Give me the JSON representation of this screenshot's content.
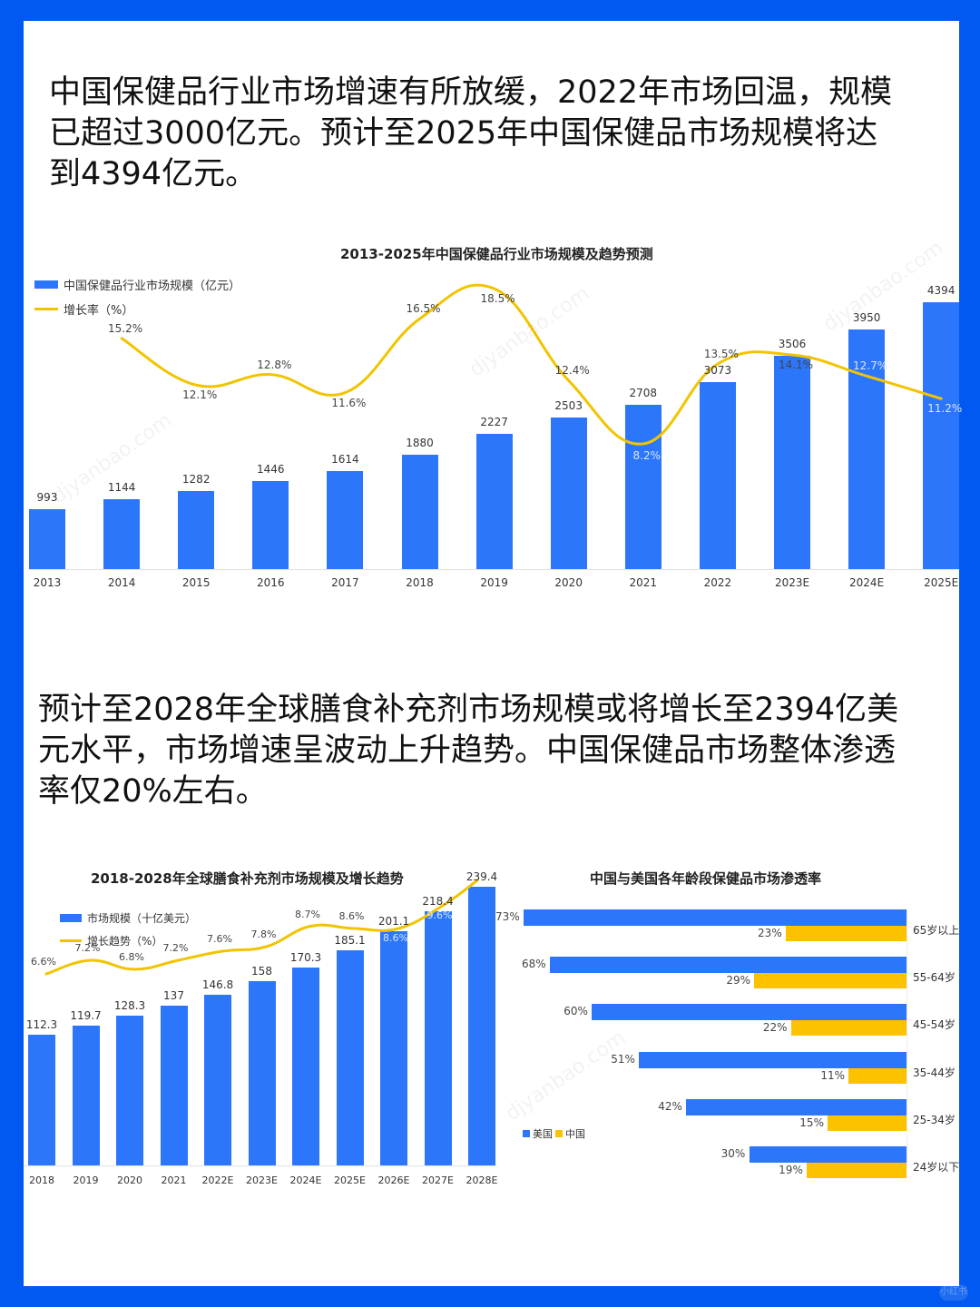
{
  "paragraphs": [
    "中国保健品行业市场增速有所放缓，2022年市场回温，规模已超过3000亿元。预计至2025年中国保健品市场规模将达到4394亿元。",
    "预计至2028年全球膳食补充剂市场规模或将增长至2394亿美元水平，市场增速呈波动上升趋势。中国保健品市场整体渗透率仅20%左右。"
  ],
  "paragraph_lines": [
    [
      "中国保健品行业市场增速有所放缓，2022年市场回温，规模",
      "已超过3000亿元。预计至2025年中国保健品市场规模将达",
      "到4394亿元。"
    ],
    [
      "预计至2028年全球膳食补充剂市场规模或将增长至2394亿美",
      "元水平，市场增速呈波动上升趋势。中国保健品市场整体渗透",
      "率仅20%左右。"
    ]
  ],
  "watermark": "djyanbao.com",
  "badge": "小红书",
  "colors": {
    "frame": "#0059f0",
    "bar": "#2c76fb",
    "line": "#f2c400",
    "china_bar": "#fcc200"
  },
  "chart_data": [
    {
      "type": "bar",
      "title": "2013-2025年中国保健品行业市场规模及趋势预测",
      "categories": [
        "2013",
        "2014",
        "2015",
        "2016",
        "2017",
        "2018",
        "2019",
        "2020",
        "2021",
        "2022",
        "2023E",
        "2024E",
        "2025E"
      ],
      "series": [
        {
          "name": "中国保健品行业市场规模（亿元）",
          "type": "bar",
          "values": [
            993,
            1144,
            1282,
            1446,
            1614,
            1880,
            2227,
            2503,
            2708,
            3073,
            3506,
            3950,
            4394
          ],
          "labels": [
            "993",
            "1144",
            "1282",
            "1446",
            "1614",
            "1880",
            "2227",
            "2503",
            "2708",
            "3073",
            "3506",
            "3950",
            "4394"
          ]
        },
        {
          "name": "增长率（%）",
          "type": "line",
          "values": [
            null,
            15.2,
            12.1,
            12.8,
            11.6,
            16.5,
            18.5,
            12.4,
            8.2,
            13.5,
            14.1,
            12.7,
            11.2
          ],
          "labels": [
            "",
            "15.2%",
            "12.1%",
            "12.8%",
            "11.6%",
            "16.5%",
            "18.5%",
            "12.4%",
            "8.2%",
            "13.5%",
            "14.1%",
            "12.7%",
            "11.2%"
          ]
        }
      ],
      "legend": {
        "bar": "中国保健品行业市场规模（亿元）",
        "line": "增长率（%）",
        "position": "top-left"
      },
      "xlabel": "",
      "ylabel": "",
      "grid": false
    },
    {
      "type": "bar",
      "title": "2018-2028年全球膳食补充剂市场规模及增长趋势",
      "categories": [
        "2018",
        "2019",
        "2020",
        "2021",
        "2022E",
        "2023E",
        "2024E",
        "2025E",
        "2026E",
        "2027E",
        "2028E"
      ],
      "series": [
        {
          "name": "市场规模（十亿美元）",
          "type": "bar",
          "values": [
            112.3,
            119.7,
            128.3,
            137,
            146.8,
            158,
            170.3,
            185.1,
            201.1,
            218.4,
            239.4
          ],
          "labels": [
            "112.3",
            "119.7",
            "128.3",
            "137",
            "146.8",
            "158",
            "170.3",
            "185.1",
            "201.1",
            "218.4",
            "239.4"
          ]
        },
        {
          "name": "增长趋势（%）",
          "type": "line",
          "values": [
            6.6,
            7.2,
            6.8,
            7.2,
            7.6,
            7.8,
            8.7,
            8.6,
            8.6,
            9.6,
            null
          ],
          "labels": [
            "6.6%",
            "7.2%",
            "6.8%",
            "7.2%",
            "7.6%",
            "7.8%",
            "8.7%",
            "8.6%",
            "8.6%",
            "9.6%",
            ""
          ]
        }
      ],
      "legend": {
        "bar": "市场规模（十亿美元）",
        "line": "增长趋势（%）",
        "position": "top-left"
      },
      "xlabel": "",
      "ylabel": "",
      "grid": false
    },
    {
      "type": "bar",
      "orientation": "horizontal",
      "title": "中国与美国各年龄段保健品市场渗透率",
      "categories": [
        "65岁以上",
        "55-64岁",
        "45-54岁",
        "35-44岁",
        "25-34岁",
        "24岁以下"
      ],
      "series": [
        {
          "name": "美国",
          "values": [
            73,
            68,
            60,
            51,
            42,
            30
          ],
          "labels": [
            "73%",
            "68%",
            "60%",
            "51%",
            "42%",
            "30%"
          ]
        },
        {
          "name": "中国",
          "values": [
            23,
            29,
            22,
            11,
            15,
            19
          ],
          "labels": [
            "23%",
            "29%",
            "22%",
            "11%",
            "15%",
            "19%"
          ]
        }
      ],
      "legend": {
        "items": [
          "美国",
          "中国"
        ],
        "position": "left"
      },
      "axis_side": "right",
      "grid": false
    }
  ]
}
